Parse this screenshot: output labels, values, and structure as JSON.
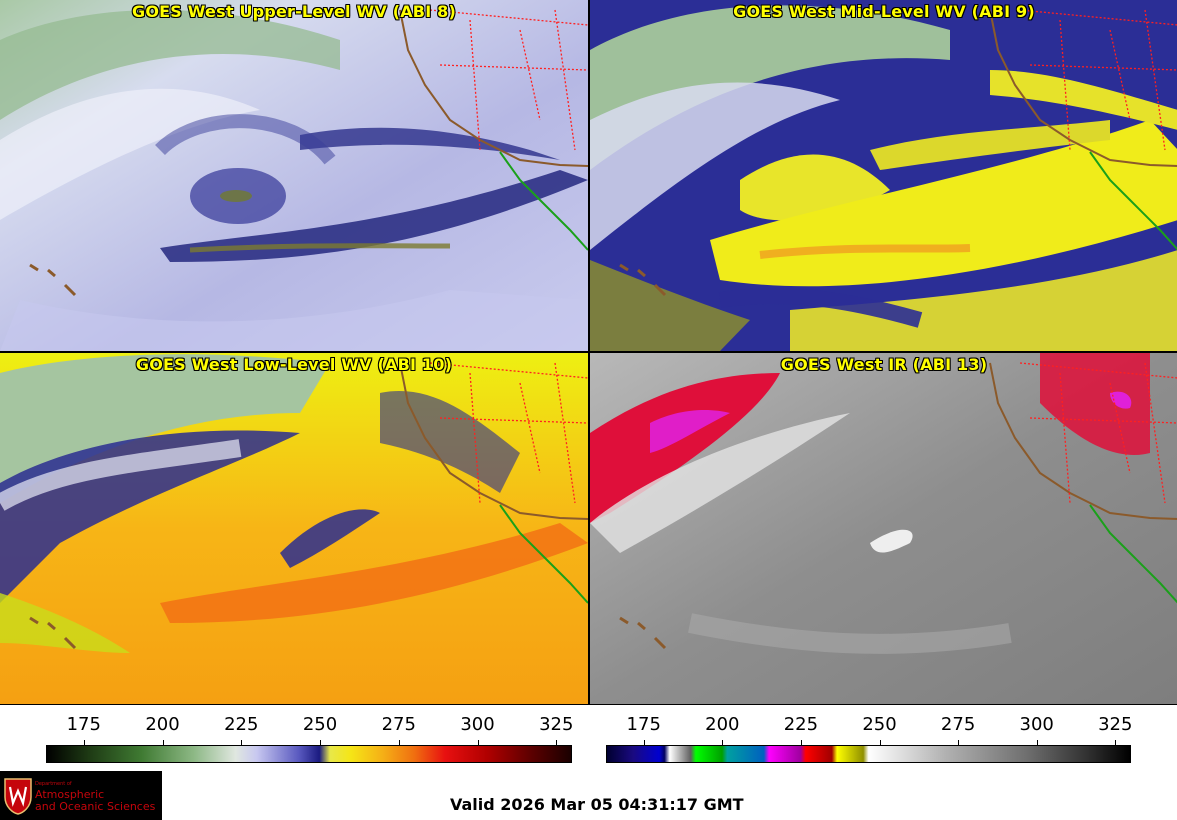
{
  "panels": [
    {
      "title": "GOES West Upper-Level WV (ABI 8)"
    },
    {
      "title": "GOES West Mid-Level WV (ABI 9)"
    },
    {
      "title": "GOES West Low-Level WV (ABI 10)"
    },
    {
      "title": "GOES West IR (ABI 13)"
    }
  ],
  "colorbars": {
    "left": {
      "ticks": [
        "175",
        "200",
        "225",
        "250",
        "275",
        "300",
        "325"
      ],
      "min": 163,
      "max": 330
    },
    "right": {
      "ticks": [
        "175",
        "200",
        "225",
        "250",
        "275",
        "300",
        "325"
      ],
      "min": 163,
      "max": 330
    }
  },
  "logo": {
    "dept": "Department of",
    "line1": "Atmospheric",
    "line2": "and Oceanic Sciences"
  },
  "valid_time": "Valid 2026 Mar 05 04:31:17 GMT",
  "colors": {
    "wv_bg": "#b7b9e6",
    "wv_dark": "#1d1f7a",
    "moist_green": "#8fb48c",
    "dry_yellow": "#f2ee10",
    "dry_orange": "#f58a10",
    "ir_gray": "#8a8a8a",
    "ir_red": "#e0103a",
    "border_red": "#ff2020",
    "coast_brown": "#8b5a2b",
    "coast_green": "#1aa01a"
  }
}
